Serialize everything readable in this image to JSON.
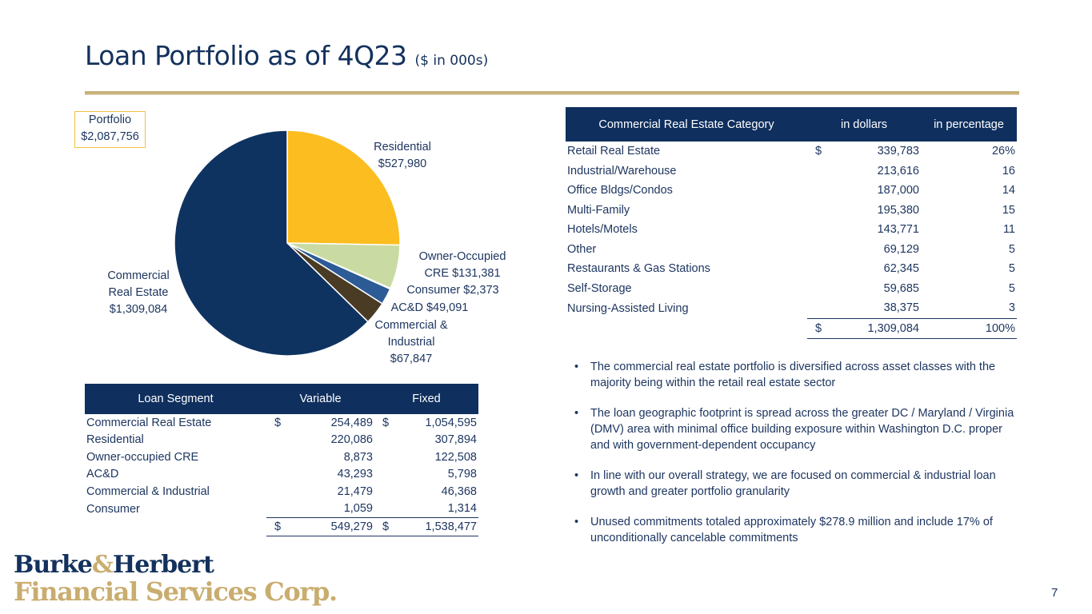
{
  "title": {
    "main": "Loan Portfolio as of 4Q23",
    "sub": "($ in 000s)"
  },
  "portfolio": {
    "label": "Portfolio",
    "value": "$2,087,756"
  },
  "chart_data": {
    "type": "pie",
    "title": "Loan Portfolio",
    "total": 2087756,
    "slices": [
      {
        "name": "Residential",
        "value": 527980,
        "color": "#fcbd20",
        "label_lines": [
          "Residential",
          "$527,980"
        ]
      },
      {
        "name": "Owner-Occupied CRE",
        "value": 131381,
        "color": "#c9dba2",
        "label_lines": [
          "Owner-Occupied",
          "CRE  $131,381"
        ]
      },
      {
        "name": "Consumer",
        "value": 2373,
        "color": "#e4e8ef",
        "label_lines": [
          "Consumer  $2,373"
        ]
      },
      {
        "name": "AC&D",
        "value": 49091,
        "color": "#2c5b96",
        "label_lines": [
          "AC&D  $49,091"
        ]
      },
      {
        "name": "Commercial & Industrial",
        "value": 67847,
        "color": "#4a3b24",
        "label_lines": [
          "Commercial &",
          "Industrial",
          "$67,847"
        ]
      },
      {
        "name": "Commercial Real Estate",
        "value": 1309084,
        "color": "#0f3361",
        "label_lines": [
          "Commercial",
          "Real Estate",
          "$1,309,084"
        ]
      }
    ]
  },
  "segment_table": {
    "headers": [
      "Loan Segment",
      "Variable",
      "Fixed"
    ],
    "rows": [
      {
        "segment": "Commercial Real Estate",
        "variable": "254,489",
        "fixed": "1,054,595",
        "variable_prefix": "$",
        "fixed_prefix": "$"
      },
      {
        "segment": "Residential",
        "variable": "220,086",
        "fixed": "307,894",
        "variable_prefix": "",
        "fixed_prefix": ""
      },
      {
        "segment": "Owner-occupied CRE",
        "variable": "8,873",
        "fixed": "122,508",
        "variable_prefix": "",
        "fixed_prefix": ""
      },
      {
        "segment": "AC&D",
        "variable": "43,293",
        "fixed": "5,798",
        "variable_prefix": "",
        "fixed_prefix": ""
      },
      {
        "segment": "Commercial & Industrial",
        "variable": "21,479",
        "fixed": "46,368",
        "variable_prefix": "",
        "fixed_prefix": ""
      },
      {
        "segment": "Consumer",
        "variable": "1,059",
        "fixed": "1,314",
        "variable_prefix": "",
        "fixed_prefix": ""
      }
    ],
    "total": {
      "variable_prefix": "$",
      "variable": "549,279",
      "fixed_prefix": "$",
      "fixed": "1,538,477"
    }
  },
  "cre_table": {
    "headers": [
      "Commercial Real Estate Category",
      "in dollars",
      "in percentage"
    ],
    "rows": [
      {
        "category": "Retail Real Estate",
        "prefix": "$",
        "dollars": "339,783",
        "pct": "26%"
      },
      {
        "category": "Industrial/Warehouse",
        "prefix": "",
        "dollars": "213,616",
        "pct": "16"
      },
      {
        "category": "Office Bldgs/Condos",
        "prefix": "",
        "dollars": "187,000",
        "pct": "14"
      },
      {
        "category": "Multi-Family",
        "prefix": "",
        "dollars": "195,380",
        "pct": "15"
      },
      {
        "category": "Hotels/Motels",
        "prefix": "",
        "dollars": "143,771",
        "pct": "11"
      },
      {
        "category": "Other",
        "prefix": "",
        "dollars": "69,129",
        "pct": "5"
      },
      {
        "category": "Restaurants & Gas Stations",
        "prefix": "",
        "dollars": "62,345",
        "pct": "5"
      },
      {
        "category": "Self-Storage",
        "prefix": "",
        "dollars": "59,685",
        "pct": "5"
      },
      {
        "category": "Nursing-Assisted Living",
        "prefix": "",
        "dollars": "38,375",
        "pct": "3"
      }
    ],
    "total": {
      "prefix": "$",
      "dollars": "1,309,084",
      "pct": "100%"
    }
  },
  "bullets": [
    "The commercial real estate portfolio is diversified across asset classes with the majority being within the retail real estate sector",
    "The loan geographic footprint is spread across the greater DC / Maryland / Virginia (DMV) area with minimal office building exposure within Washington D.C. proper and with government-dependent occupancy",
    "In line with our overall strategy, we are focused on commercial & industrial loan growth and greater portfolio granularity",
    "Unused commitments totaled approximately $278.9 million and include 17% of unconditionally cancelable commitments"
  ],
  "logo": {
    "line1_a": "Burke",
    "line1_amp": "&",
    "line1_b": "Herbert",
    "line2": "Financial Services Corp."
  },
  "page_number": "7",
  "colors": {
    "navy": "#0f2f5e",
    "gold": "#c8b27b",
    "yellow": "#fcbd20"
  }
}
